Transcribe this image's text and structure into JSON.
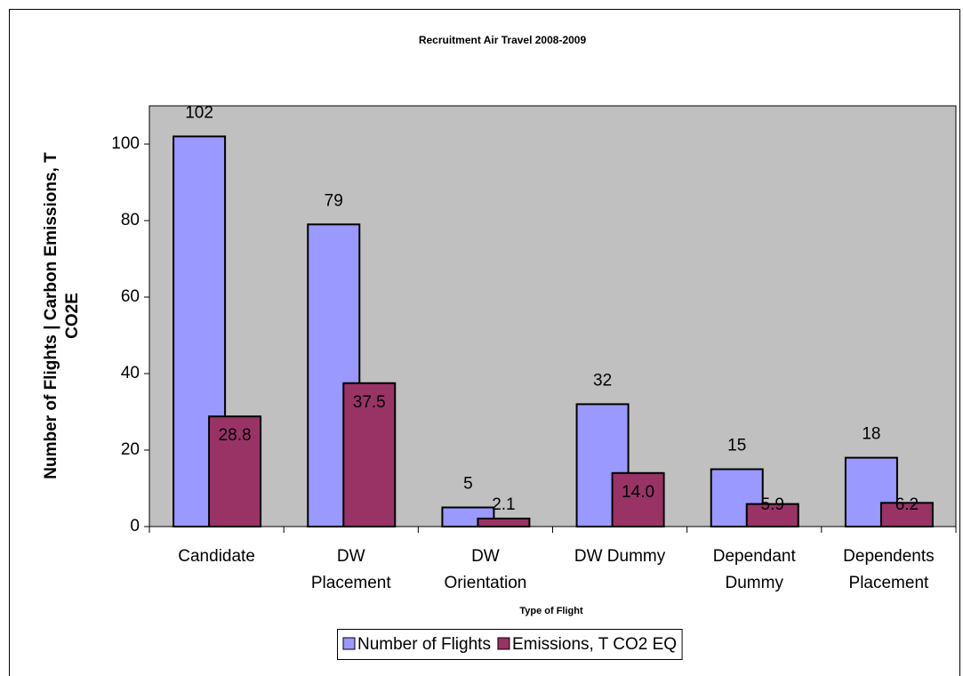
{
  "chart_data": {
    "type": "bar",
    "title": "Recruitment Air Travel 2008-2009",
    "x_label": "Type of Flight",
    "y_label": "Number of Flights | Carbon Emissions, T\nCO2E",
    "categories": [
      "Candidate",
      "DW\nPlacement",
      "DW\nOrientation",
      "DW Dummy",
      "Dependant\nDummy",
      "Dependents\nPlacement"
    ],
    "series": [
      {
        "name": "Number of Flights",
        "color": "#9999ff",
        "values": [
          102,
          79,
          5,
          32,
          15,
          18
        ]
      },
      {
        "name": "Emissions, T CO2 EQ",
        "color": "#993366",
        "values": [
          28.8,
          37.5,
          2.1,
          14.0,
          5.9,
          6.2
        ],
        "value_labels": [
          "28.8",
          "37.5",
          "2.1",
          "14.0",
          "5.9",
          "6.2"
        ]
      }
    ],
    "ylim": [
      0,
      110
    ],
    "yticks": [
      0,
      20,
      40,
      60,
      80,
      100
    ],
    "grid": false,
    "legend": "bottom",
    "plot_background": "#c0c0c0"
  }
}
